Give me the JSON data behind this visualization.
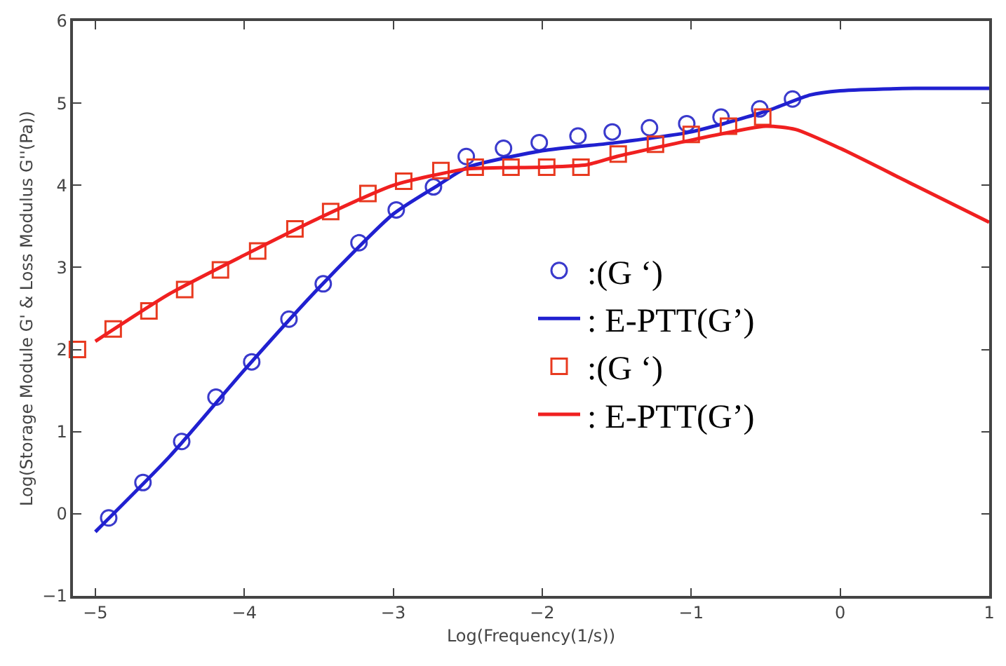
{
  "chart_data": {
    "type": "line",
    "xlabel": "Log(Frequency(1/s))",
    "ylabel": "Log(Storage Module G' & Loss Modulus G''(Pa))",
    "xlim": [
      -5.15,
      1
    ],
    "xticks": [
      -5,
      -4,
      -3,
      -2,
      -1,
      0,
      1
    ],
    "ylim": [
      -1,
      6
    ],
    "yticks": [
      -1,
      0,
      1,
      2,
      3,
      4,
      5,
      6
    ],
    "grid": false,
    "legend": "right",
    "series": [
      {
        "name": ":(G ‘)",
        "type": "scatter",
        "marker": "circle",
        "color": "#3a3acc",
        "x": [
          -4.91,
          -4.68,
          -4.42,
          -4.19,
          -3.95,
          -3.7,
          -3.47,
          -3.23,
          -2.98,
          -2.73,
          -2.51,
          -2.26,
          -2.02,
          -1.76,
          -1.53,
          -1.28,
          -1.03,
          -0.8,
          -0.54,
          -0.32
        ],
        "values": [
          -0.05,
          0.38,
          0.88,
          1.42,
          1.85,
          2.37,
          2.8,
          3.3,
          3.7,
          3.98,
          4.35,
          4.45,
          4.52,
          4.6,
          4.65,
          4.7,
          4.75,
          4.83,
          4.93,
          5.05
        ]
      },
      {
        "name": ": E-PTT(G’)",
        "marker": "none",
        "color": "#2020d0",
        "x": [
          -5,
          -4.5,
          -4,
          -3.5,
          -3,
          -2.7,
          -2.5,
          -2,
          -1.5,
          -1,
          -0.5,
          -0.2,
          0,
          0.5,
          1
        ],
        "values": [
          -0.22,
          0.7,
          1.75,
          2.75,
          3.65,
          4.0,
          4.22,
          4.42,
          4.52,
          4.65,
          4.9,
          5.1,
          5.15,
          5.18,
          5.18
        ]
      },
      {
        "name": ":(G ‘)",
        "type": "scatter",
        "marker": "square",
        "color": "#e83a20",
        "x": [
          -5.12,
          -4.88,
          -4.64,
          -4.4,
          -4.16,
          -3.91,
          -3.66,
          -3.42,
          -3.17,
          -2.93,
          -2.68,
          -2.45,
          -2.21,
          -1.97,
          -1.74,
          -1.49,
          -1.24,
          -1.0,
          -0.75,
          -0.52
        ],
        "values": [
          2.0,
          2.25,
          2.47,
          2.73,
          2.97,
          3.2,
          3.47,
          3.68,
          3.9,
          4.05,
          4.18,
          4.22,
          4.22,
          4.22,
          4.22,
          4.38,
          4.5,
          4.62,
          4.72,
          4.83
        ]
      },
      {
        "name": ": E-PTT(G’)",
        "marker": "none",
        "color": "#f02020",
        "x": [
          -5,
          -4.5,
          -4,
          -3.5,
          -3,
          -2.5,
          -2,
          -1.7,
          -1.5,
          -1,
          -0.5,
          -0.3,
          0,
          0.5,
          1
        ],
        "values": [
          2.1,
          2.68,
          3.15,
          3.6,
          4.0,
          4.2,
          4.22,
          4.25,
          4.35,
          4.55,
          4.72,
          4.68,
          4.45,
          4.0,
          3.55
        ]
      }
    ]
  }
}
